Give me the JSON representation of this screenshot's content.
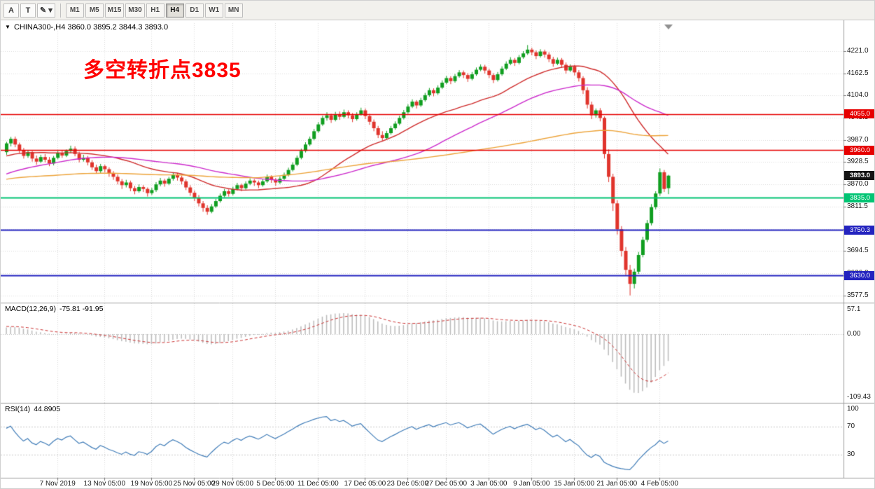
{
  "icons": {
    "collapse": "▼",
    "dropdown_caret": "▾"
  },
  "colors": {
    "bull": "#109e20",
    "bear": "#e0342c",
    "ma_fast": "#cf2b2b",
    "ma_mid": "#cc2acc",
    "ma_slow": "#eda339",
    "macd_hist": "#bbbbbb",
    "macd_signal": "#cc3333",
    "rsi_line": "#3f7cb8",
    "grid": "#dadada",
    "annotation": "#ff0000",
    "current_badge_bg": "#141414"
  },
  "toolbar": {
    "buttons": [
      {
        "name": "text-tool-button",
        "label": "A"
      },
      {
        "name": "annotation-tool-button",
        "label": "T"
      },
      {
        "name": "draw-tool-dropdown",
        "label": "✎",
        "caret": "▾"
      }
    ],
    "timeframes": [
      "M1",
      "M5",
      "M15",
      "M30",
      "H1",
      "H4",
      "D1",
      "W1",
      "MN"
    ],
    "active_timeframe": "H4"
  },
  "chart": {
    "symbol_title": "CHINA300-,H4",
    "ohlc_text": "3860.0 3895.2 3844.3 3893.0",
    "annotation": {
      "text": "多空转折点3835",
      "color": "#ff0000"
    },
    "current_price_label": "3893.0"
  },
  "chart_data": {
    "type": "candlestick",
    "symbol": "CHINA300-",
    "timeframe": "H4",
    "current_price": 3893.0,
    "y_ticks": [
      4221.0,
      4162.5,
      4104.0,
      4045.5,
      3987.0,
      3928.5,
      3870.0,
      3811.5,
      3753.0,
      3694.5,
      3636.0,
      3577.5
    ],
    "x_ticks": [
      {
        "label": "7 Nov 2019",
        "bar": 12
      },
      {
        "label": "13 Nov 05:00",
        "bar": 23
      },
      {
        "label": "19 Nov 05:00",
        "bar": 34
      },
      {
        "label": "25 Nov 05:00",
        "bar": 44
      },
      {
        "label": "29 Nov 05:00",
        "bar": 53
      },
      {
        "label": "5 Dec 05:00",
        "bar": 63
      },
      {
        "label": "11 Dec 05:00",
        "bar": 73
      },
      {
        "label": "17 Dec 05:00",
        "bar": 84
      },
      {
        "label": "23 Dec 05:00",
        "bar": 94
      },
      {
        "label": "27 Dec 05:00",
        "bar": 103
      },
      {
        "label": "3 Jan 05:00",
        "bar": 113
      },
      {
        "label": "9 Jan 05:00",
        "bar": 123
      },
      {
        "label": "15 Jan 05:00",
        "bar": 133
      },
      {
        "label": "21 Jan 05:00",
        "bar": 143
      },
      {
        "label": "4 Feb 05:00",
        "bar": 153
      }
    ],
    "hlines": [
      {
        "label": "4055.0",
        "value": 4055.0,
        "color": "#e60000",
        "lw": 1.5
      },
      {
        "label": "3960.0",
        "value": 3960.0,
        "color": "#e60000",
        "lw": 1.5
      },
      {
        "label": "3835.0",
        "value": 3835.0,
        "color": "#00c473",
        "lw": 2
      },
      {
        "label": "3750.3",
        "value": 3750.3,
        "color": "#2323bf",
        "lw": 2
      },
      {
        "label": "3630.0",
        "value": 3630.0,
        "color": "#2323bf",
        "lw": 2
      }
    ],
    "moving_averages": [
      {
        "period": 30,
        "color": "#cf2b2b"
      },
      {
        "period": 55,
        "color": "#cc2acc"
      },
      {
        "period": 120,
        "color": "#eda339"
      }
    ],
    "history_closes": [
      3745,
      3752,
      3748,
      3760,
      3772,
      3765,
      3778,
      3790,
      3783,
      3796,
      3805,
      3798,
      3812,
      3820,
      3815,
      3828,
      3836,
      3830,
      3842,
      3850,
      3845,
      3858,
      3866,
      3860,
      3872,
      3880,
      3874,
      3886,
      3895,
      3890,
      3902,
      3910,
      3904,
      3915,
      3922,
      3918,
      3928,
      3935,
      3930,
      3940,
      3946,
      3942,
      3950,
      3955,
      3948,
      3958,
      3952,
      3960,
      3956,
      3950,
      3944,
      3952,
      3958,
      3963,
      3955,
      3948,
      3956,
      3962,
      3958,
      3952
    ],
    "candles": [
      [
        3955,
        3982,
        3948,
        3978
      ],
      [
        3978,
        3995,
        3970,
        3990
      ],
      [
        3990,
        3996,
        3968,
        3975
      ],
      [
        3975,
        3980,
        3952,
        3960
      ],
      [
        3960,
        3966,
        3938,
        3945
      ],
      [
        3945,
        3960,
        3940,
        3955
      ],
      [
        3955,
        3958,
        3930,
        3938
      ],
      [
        3938,
        3946,
        3922,
        3930
      ],
      [
        3930,
        3948,
        3926,
        3942
      ],
      [
        3942,
        3950,
        3928,
        3935
      ],
      [
        3935,
        3942,
        3918,
        3925
      ],
      [
        3925,
        3945,
        3920,
        3940
      ],
      [
        3940,
        3958,
        3936,
        3952
      ],
      [
        3952,
        3960,
        3940,
        3946
      ],
      [
        3946,
        3962,
        3942,
        3958
      ],
      [
        3958,
        3972,
        3952,
        3964
      ],
      [
        3964,
        3970,
        3944,
        3950
      ],
      [
        3950,
        3956,
        3928,
        3935
      ],
      [
        3935,
        3948,
        3930,
        3940
      ],
      [
        3940,
        3945,
        3920,
        3928
      ],
      [
        3928,
        3934,
        3908,
        3915
      ],
      [
        3915,
        3922,
        3898,
        3905
      ],
      [
        3905,
        3924,
        3900,
        3918
      ],
      [
        3918,
        3922,
        3902,
        3910
      ],
      [
        3910,
        3915,
        3890,
        3898
      ],
      [
        3898,
        3905,
        3882,
        3890
      ],
      [
        3890,
        3896,
        3870,
        3878
      ],
      [
        3878,
        3884,
        3858,
        3868
      ],
      [
        3868,
        3882,
        3862,
        3875
      ],
      [
        3875,
        3880,
        3852,
        3860
      ],
      [
        3860,
        3866,
        3844,
        3852
      ],
      [
        3852,
        3870,
        3848,
        3863
      ],
      [
        3863,
        3868,
        3850,
        3858
      ],
      [
        3858,
        3862,
        3838,
        3847
      ],
      [
        3847,
        3861,
        3842,
        3855
      ],
      [
        3855,
        3876,
        3850,
        3870
      ],
      [
        3870,
        3887,
        3865,
        3880
      ],
      [
        3880,
        3885,
        3864,
        3872
      ],
      [
        3872,
        3890,
        3868,
        3885
      ],
      [
        3885,
        3902,
        3880,
        3895
      ],
      [
        3895,
        3900,
        3880,
        3888
      ],
      [
        3888,
        3893,
        3870,
        3878
      ],
      [
        3878,
        3883,
        3855,
        3862
      ],
      [
        3862,
        3868,
        3840,
        3848
      ],
      [
        3848,
        3854,
        3826,
        3835
      ],
      [
        3835,
        3842,
        3812,
        3820
      ],
      [
        3820,
        3826,
        3798,
        3808
      ],
      [
        3808,
        3815,
        3790,
        3798
      ],
      [
        3798,
        3818,
        3794,
        3812
      ],
      [
        3812,
        3832,
        3808,
        3826
      ],
      [
        3826,
        3846,
        3822,
        3840
      ],
      [
        3840,
        3858,
        3836,
        3852
      ],
      [
        3852,
        3857,
        3838,
        3845
      ],
      [
        3845,
        3864,
        3841,
        3858
      ],
      [
        3858,
        3874,
        3854,
        3868
      ],
      [
        3868,
        3872,
        3852,
        3860
      ],
      [
        3860,
        3878,
        3856,
        3872
      ],
      [
        3872,
        3886,
        3868,
        3880
      ],
      [
        3880,
        3884,
        3866,
        3875
      ],
      [
        3875,
        3880,
        3860,
        3868
      ],
      [
        3868,
        3884,
        3864,
        3878
      ],
      [
        3878,
        3896,
        3874,
        3890
      ],
      [
        3890,
        3894,
        3874,
        3882
      ],
      [
        3882,
        3887,
        3866,
        3875
      ],
      [
        3875,
        3891,
        3871,
        3885
      ],
      [
        3885,
        3901,
        3881,
        3895
      ],
      [
        3895,
        3914,
        3891,
        3908
      ],
      [
        3908,
        3928,
        3904,
        3922
      ],
      [
        3922,
        3946,
        3918,
        3940
      ],
      [
        3940,
        3964,
        3936,
        3958
      ],
      [
        3958,
        3981,
        3954,
        3975
      ],
      [
        3975,
        3996,
        3971,
        3990
      ],
      [
        3990,
        4016,
        3986,
        4010
      ],
      [
        4010,
        4034,
        4006,
        4028
      ],
      [
        4028,
        4051,
        4024,
        4045
      ],
      [
        4045,
        4060,
        4038,
        4052
      ],
      [
        4052,
        4056,
        4032,
        4040
      ],
      [
        4040,
        4061,
        4036,
        4055
      ],
      [
        4055,
        4062,
        4040,
        4048
      ],
      [
        4048,
        4067,
        4044,
        4060
      ],
      [
        4060,
        4065,
        4044,
        4052
      ],
      [
        4052,
        4058,
        4034,
        4042
      ],
      [
        4042,
        4060,
        4038,
        4055
      ],
      [
        4055,
        4072,
        4051,
        4065
      ],
      [
        4065,
        4070,
        4042,
        4050
      ],
      [
        4050,
        4056,
        4027,
        4035
      ],
      [
        4035,
        4041,
        4010,
        4018
      ],
      [
        4018,
        4024,
        3992,
        4000
      ],
      [
        4000,
        4010,
        3984,
        3992
      ],
      [
        3992,
        4011,
        3988,
        4005
      ],
      [
        4005,
        4024,
        4001,
        4018
      ],
      [
        4018,
        4036,
        4014,
        4030
      ],
      [
        4030,
        4051,
        4026,
        4045
      ],
      [
        4045,
        4066,
        4041,
        4060
      ],
      [
        4060,
        4081,
        4056,
        4075
      ],
      [
        4075,
        4094,
        4071,
        4088
      ],
      [
        4088,
        4092,
        4070,
        4078
      ],
      [
        4078,
        4098,
        4074,
        4092
      ],
      [
        4092,
        4111,
        4088,
        4105
      ],
      [
        4105,
        4124,
        4101,
        4118
      ],
      [
        4118,
        4123,
        4102,
        4110
      ],
      [
        4110,
        4131,
        4106,
        4125
      ],
      [
        4125,
        4144,
        4121,
        4138
      ],
      [
        4138,
        4156,
        4134,
        4150
      ],
      [
        4150,
        4155,
        4134,
        4142
      ],
      [
        4142,
        4161,
        4138,
        4155
      ],
      [
        4155,
        4171,
        4151,
        4165
      ],
      [
        4165,
        4170,
        4150,
        4158
      ],
      [
        4158,
        4163,
        4140,
        4148
      ],
      [
        4148,
        4166,
        4144,
        4160
      ],
      [
        4160,
        4178,
        4156,
        4172
      ],
      [
        4172,
        4186,
        4168,
        4180
      ],
      [
        4180,
        4185,
        4162,
        4170
      ],
      [
        4170,
        4175,
        4150,
        4158
      ],
      [
        4158,
        4163,
        4137,
        4145
      ],
      [
        4145,
        4166,
        4141,
        4160
      ],
      [
        4160,
        4181,
        4156,
        4175
      ],
      [
        4175,
        4194,
        4171,
        4188
      ],
      [
        4188,
        4205,
        4184,
        4198
      ],
      [
        4198,
        4203,
        4182,
        4190
      ],
      [
        4190,
        4211,
        4186,
        4205
      ],
      [
        4205,
        4221,
        4201,
        4215
      ],
      [
        4215,
        4237,
        4211,
        4225
      ],
      [
        4225,
        4230,
        4210,
        4218
      ],
      [
        4218,
        4223,
        4200,
        4208
      ],
      [
        4208,
        4226,
        4204,
        4220
      ],
      [
        4220,
        4225,
        4204,
        4212
      ],
      [
        4212,
        4218,
        4192,
        4200
      ],
      [
        4200,
        4206,
        4180,
        4188
      ],
      [
        4188,
        4204,
        4184,
        4198
      ],
      [
        4198,
        4203,
        4177,
        4185
      ],
      [
        4185,
        4191,
        4162,
        4170
      ],
      [
        4170,
        4186,
        4166,
        4180
      ],
      [
        4180,
        4185,
        4157,
        4165
      ],
      [
        4165,
        4171,
        4141,
        4150
      ],
      [
        4150,
        4155,
        4108,
        4118
      ],
      [
        4118,
        4126,
        4070,
        4080
      ],
      [
        4080,
        4088,
        4042,
        4052
      ],
      [
        4052,
        4070,
        4046,
        4065
      ],
      [
        4065,
        4071,
        4036,
        4045
      ],
      [
        4045,
        4049,
        3938,
        3950
      ],
      [
        3950,
        3962,
        3876,
        3890
      ],
      [
        3890,
        3898,
        3800,
        3820
      ],
      [
        3820,
        3828,
        3738,
        3752
      ],
      [
        3752,
        3760,
        3680,
        3695
      ],
      [
        3695,
        3705,
        3630,
        3645
      ],
      [
        3645,
        3658,
        3577.5,
        3608
      ],
      [
        3608,
        3648,
        3596,
        3640
      ],
      [
        3640,
        3692,
        3634,
        3684
      ],
      [
        3684,
        3732,
        3678,
        3724
      ],
      [
        3724,
        3776,
        3718,
        3768
      ],
      [
        3768,
        3818,
        3762,
        3810
      ],
      [
        3810,
        3852,
        3804,
        3846
      ],
      [
        3846,
        3912,
        3840,
        3902
      ],
      [
        3902,
        3908,
        3850,
        3858
      ],
      [
        3860,
        3895.2,
        3844.3,
        3893
      ]
    ],
    "indicators": {
      "macd": {
        "label": "MACD(12,26,9)",
        "values_text": "-75.81 -91.95",
        "fast": 12,
        "slow": 26,
        "signal": 9,
        "scale": {
          "top": "57.1",
          "zero": "0.00",
          "bottom": "-109.43"
        }
      },
      "rsi": {
        "label": "RSI(14)",
        "value_text": "44.8905",
        "period": 14,
        "levels": [
          70,
          30
        ],
        "scale_top": "100"
      }
    }
  }
}
